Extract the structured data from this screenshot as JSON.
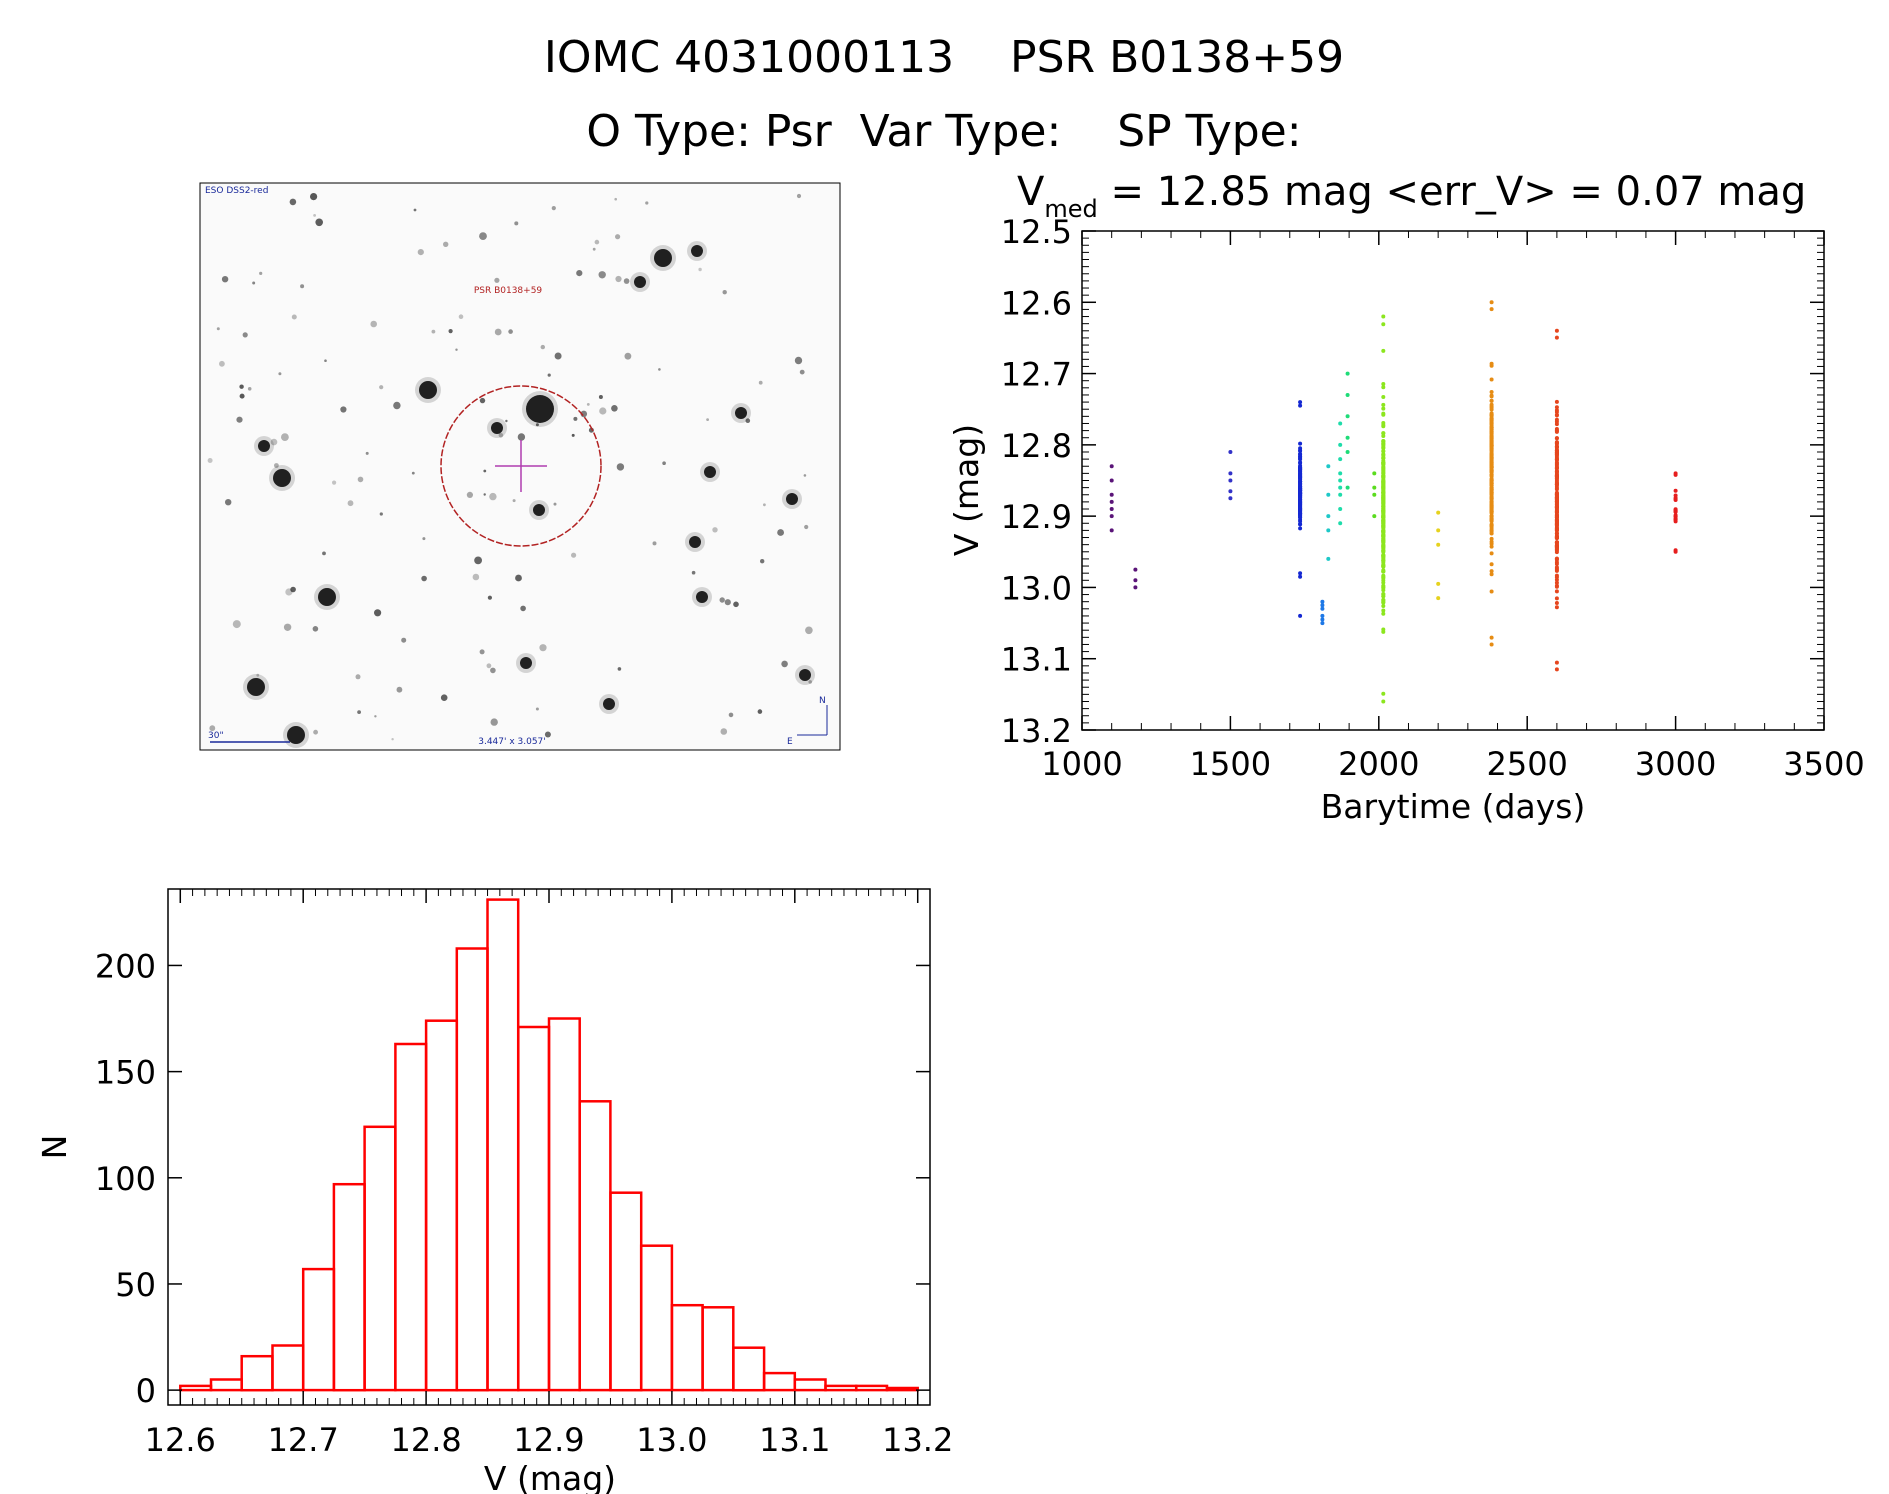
{
  "header": {
    "title": "IOMC 4031000113    PSR B0138+59",
    "subtitle": "O Type: Psr  Var Type:    SP Type:"
  },
  "finder": {
    "survey_label": "ESO DSS2-red",
    "target_label": "PSR B0138+59",
    "scale_label": "30\"",
    "size_label": "3.447' x 3.057'",
    "compass_n": "N",
    "compass_e": "E",
    "colors": {
      "circle": "#b22222",
      "crosshair": "#b03cb0",
      "labels_blue": "#1a2a9a",
      "labels_red": "#b22222"
    }
  },
  "chart_data": [
    {
      "type": "scatter",
      "title": "V",
      "title_sub": "med",
      "title_rest": " = 12.85 mag <err_V> = 0.07 mag",
      "xlabel": "Barytime (days)",
      "ylabel": "V (mag)",
      "xlim": [
        1000,
        3500
      ],
      "ylim": [
        12.5,
        13.2
      ],
      "y_inverted": true,
      "x_ticks": [
        1000,
        1500,
        2000,
        2500,
        3000,
        3500
      ],
      "x_tick_labels": [
        "1000",
        "1500",
        "2000",
        "2500",
        "3000",
        "3500"
      ],
      "y_ticks": [
        12.5,
        12.6,
        12.7,
        12.8,
        12.9,
        13.0,
        13.1,
        13.2
      ],
      "y_tick_labels": [
        "12.5",
        "12.6",
        "12.7",
        "12.8",
        "12.9",
        "13.0",
        "13.1",
        "13.2"
      ],
      "grid": false,
      "groups": [
        {
          "x": 1100,
          "color": "#5a1478",
          "y": [
            12.83,
            12.85,
            12.87,
            12.88,
            12.89,
            12.9,
            12.92
          ]
        },
        {
          "x": 1180,
          "color": "#5a1478",
          "y": [
            12.975,
            12.99,
            13.0
          ]
        },
        {
          "x": 1500,
          "color": "#3232c8",
          "y": [
            12.81,
            12.84,
            12.85,
            12.865,
            12.875
          ]
        },
        {
          "x": 1735,
          "color": "#1428d2",
          "ymin": 12.74,
          "ymax": 12.985,
          "n": 140,
          "extra": [
            13.04
          ]
        },
        {
          "x": 1810,
          "color": "#1e78e6",
          "y": [
            13.02,
            13.025,
            13.03,
            13.04,
            13.045,
            13.05
          ]
        },
        {
          "x": 1830,
          "color": "#1ec8c8",
          "y": [
            12.83,
            12.87,
            12.9,
            12.92,
            12.96
          ]
        },
        {
          "x": 1870,
          "color": "#1edcaa",
          "y": [
            12.77,
            12.8,
            12.82,
            12.84,
            12.85,
            12.86,
            12.87,
            12.89,
            12.91
          ]
        },
        {
          "x": 1895,
          "color": "#1edc78",
          "y": [
            12.7,
            12.73,
            12.76,
            12.79,
            12.81,
            12.86
          ]
        },
        {
          "x": 1985,
          "color": "#5adc1e",
          "y": [
            12.84,
            12.86,
            12.87,
            12.9
          ]
        },
        {
          "x": 2015,
          "color": "#8ce61e",
          "ymin": 12.62,
          "ymax": 13.16,
          "n": 260
        },
        {
          "x": 2200,
          "color": "#e6d21e",
          "y": [
            12.895,
            12.92,
            12.94,
            12.995,
            13.015
          ]
        },
        {
          "x": 2380,
          "color": "#e68c14",
          "ymin": 12.6,
          "ymax": 13.08,
          "n": 220
        },
        {
          "x": 2600,
          "color": "#e6461e",
          "ymin": 12.64,
          "ymax": 13.115,
          "n": 200
        },
        {
          "x": 3000,
          "color": "#e61e1e",
          "ymin": 12.84,
          "ymax": 12.95,
          "n": 22
        }
      ]
    },
    {
      "type": "bar",
      "subtype": "histogram",
      "xlabel": "V (mag)",
      "ylabel": "N",
      "xlim": [
        12.59,
        13.21
      ],
      "ylim": [
        -7,
        236
      ],
      "x_ticks": [
        12.6,
        12.7,
        12.8,
        12.9,
        13.0,
        13.1,
        13.2
      ],
      "x_tick_labels": [
        "12.6",
        "12.7",
        "12.8",
        "12.9",
        "13.0",
        "13.1",
        "13.2"
      ],
      "y_ticks": [
        0,
        50,
        100,
        150,
        200
      ],
      "y_tick_labels": [
        "0",
        "50",
        "100",
        "150",
        "200"
      ],
      "bin_start": 12.6,
      "bin_width": 0.025,
      "counts": [
        2,
        5,
        16,
        21,
        57,
        97,
        124,
        163,
        174,
        208,
        231,
        171,
        175,
        136,
        93,
        68,
        40,
        39,
        20,
        8,
        5,
        2,
        2,
        1
      ],
      "color": "#ff0000",
      "grid": false
    }
  ]
}
